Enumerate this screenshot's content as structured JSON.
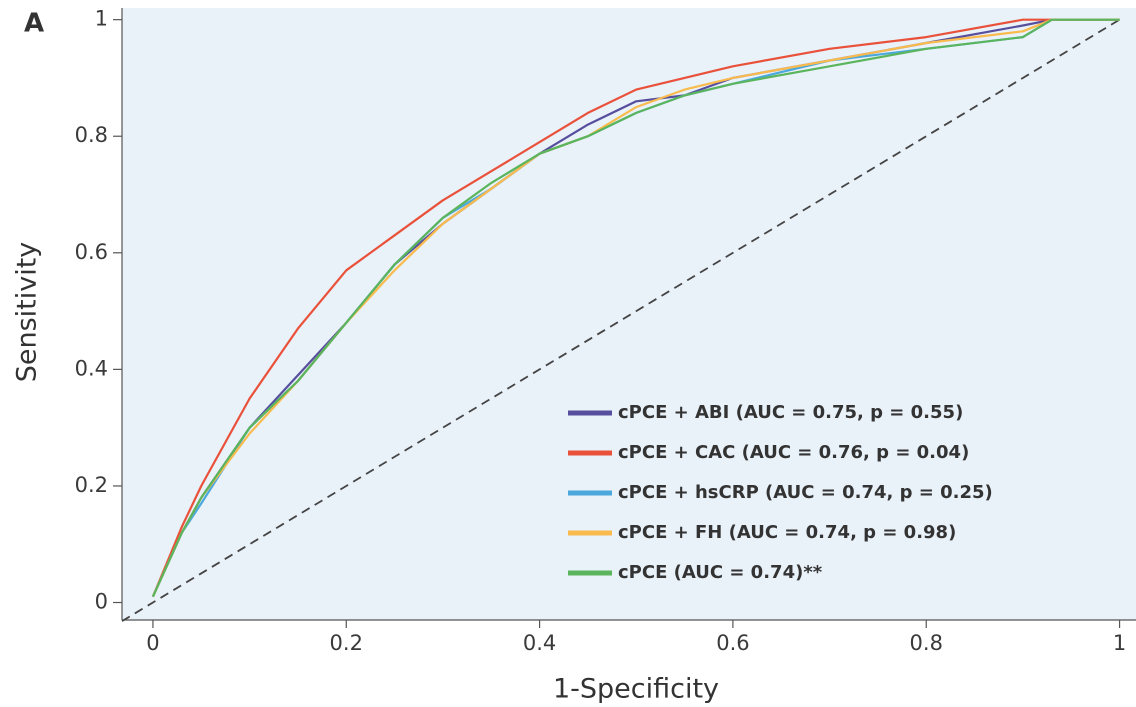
{
  "panel_label": "A",
  "chart_data": {
    "type": "line",
    "xlabel": "1-Specificity",
    "ylabel": "Sensitivity",
    "x": [
      0,
      0.03,
      0.05,
      0.1,
      0.15,
      0.2,
      0.25,
      0.3,
      0.35,
      0.4,
      0.45,
      0.5,
      0.55,
      0.6,
      0.7,
      0.8,
      0.9,
      0.93,
      1
    ],
    "series": [
      {
        "name": "cPCE  + ABI (AUC = 0.75, p = 0.55)",
        "color": "#574f9e",
        "values": [
          0.01,
          0.12,
          0.18,
          0.3,
          0.39,
          0.48,
          0.58,
          0.65,
          0.71,
          0.77,
          0.82,
          0.86,
          0.87,
          0.9,
          0.93,
          0.96,
          0.99,
          1,
          1
        ]
      },
      {
        "name": "cPCE  + CAC (AUC = 0.76, p = 0.04)",
        "color": "#e9513a",
        "values": [
          0.01,
          0.13,
          0.2,
          0.35,
          0.47,
          0.57,
          0.63,
          0.69,
          0.74,
          0.79,
          0.84,
          0.88,
          0.9,
          0.92,
          0.95,
          0.97,
          1,
          1,
          1
        ]
      },
      {
        "name": "cPCE  + hsCRP (AUC = 0.74, p = 0.25)",
        "color": "#4ba8dc",
        "values": [
          0.01,
          0.12,
          0.17,
          0.3,
          0.38,
          0.48,
          0.58,
          0.66,
          0.71,
          0.77,
          0.8,
          0.84,
          0.87,
          0.89,
          0.93,
          0.95,
          0.97,
          1,
          1
        ]
      },
      {
        "name": "cPCE  + FH (AUC = 0.74, p = 0.98)",
        "color": "#f9bb4d",
        "values": [
          0.01,
          0.12,
          0.18,
          0.29,
          0.38,
          0.48,
          0.57,
          0.65,
          0.71,
          0.77,
          0.8,
          0.85,
          0.88,
          0.9,
          0.93,
          0.96,
          0.98,
          1,
          1
        ]
      },
      {
        "name": "cPCE (AUC = 0.74)**",
        "color": "#5bb55c",
        "values": [
          0.01,
          0.12,
          0.18,
          0.3,
          0.38,
          0.48,
          0.58,
          0.66,
          0.72,
          0.77,
          0.8,
          0.84,
          0.87,
          0.89,
          0.92,
          0.95,
          0.97,
          1,
          1
        ]
      }
    ],
    "xlim": [
      -0.032,
      1.017
    ],
    "ylim": [
      -0.03,
      1.02
    ],
    "xticks": [
      0,
      0.2,
      0.4,
      0.6,
      0.8,
      1
    ],
    "yticks": [
      0,
      0.2,
      0.4,
      0.6,
      0.8,
      1
    ],
    "grid": false,
    "legend_position": "lower right",
    "background": "#e9f1f9"
  }
}
